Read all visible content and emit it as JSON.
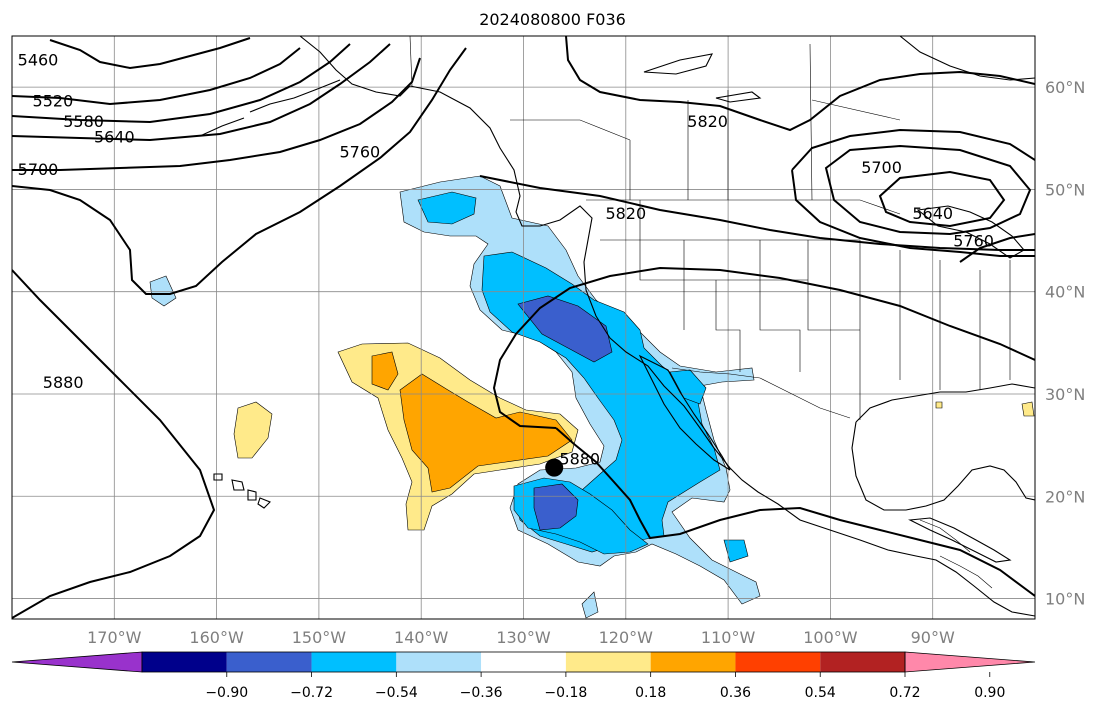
{
  "title": "2024080800 F036",
  "map": {
    "lon_range": [
      -180,
      -80
    ],
    "lat_range": [
      8,
      65
    ],
    "lon_ticks": [
      {
        "lon": -170,
        "label": "170°W"
      },
      {
        "lon": -160,
        "label": "160°W"
      },
      {
        "lon": -150,
        "label": "150°W"
      },
      {
        "lon": -140,
        "label": "140°W"
      },
      {
        "lon": -130,
        "label": "130°W"
      },
      {
        "lon": -120,
        "label": "120°W"
      },
      {
        "lon": -110,
        "label": "110°W"
      },
      {
        "lon": -100,
        "label": "100°W"
      },
      {
        "lon": -90,
        "label": "90°W"
      }
    ],
    "lat_ticks": [
      {
        "lat": 60,
        "label": "60°N"
      },
      {
        "lat": 50,
        "label": "50°N"
      },
      {
        "lat": 40,
        "label": "40°N"
      },
      {
        "lat": 30,
        "label": "30°N"
      },
      {
        "lat": 20,
        "label": "20°N"
      },
      {
        "lat": 10,
        "label": "10°N"
      }
    ],
    "gridlines": true,
    "marker": {
      "name": "storm-center",
      "lon": -127,
      "lat": 22.8
    },
    "contour_labels": [
      {
        "text": "5460",
        "lon": -179,
        "lat": 62.5
      },
      {
        "text": "5520",
        "lon": -176,
        "lat": 58.5
      },
      {
        "text": "5580",
        "lon": -173,
        "lat": 56.5
      },
      {
        "text": "5640",
        "lon": -170,
        "lat": 55
      },
      {
        "text": "5700",
        "lon": -180,
        "lat": 51.8
      },
      {
        "text": "5760",
        "lon": -146,
        "lat": 53.5
      },
      {
        "text": "5820",
        "lon": -112,
        "lat": 56.5
      },
      {
        "text": "5820",
        "lon": -120,
        "lat": 47.5
      },
      {
        "text": "5700",
        "lon": -95,
        "lat": 52
      },
      {
        "text": "5640",
        "lon": -90,
        "lat": 47.5
      },
      {
        "text": "5760",
        "lon": -86,
        "lat": 44.8
      },
      {
        "text": "5880",
        "lon": -175,
        "lat": 31
      },
      {
        "text": "5880",
        "lon": -124.5,
        "lat": 23.5
      }
    ]
  },
  "colorbar": {
    "colors": [
      "#9932cc",
      "#00008b",
      "#3a5fcd",
      "#00bfff",
      "#aee0fa",
      "#ffffff",
      "#ffea8a",
      "#ffa500",
      "#ff4000",
      "#b22222",
      "#ff88aa"
    ],
    "tick_labels": [
      "−0.90",
      "−0.72",
      "−0.54",
      "−0.36",
      "−0.18",
      "0.18",
      "0.36",
      "0.54",
      "0.72",
      "0.90"
    ]
  }
}
